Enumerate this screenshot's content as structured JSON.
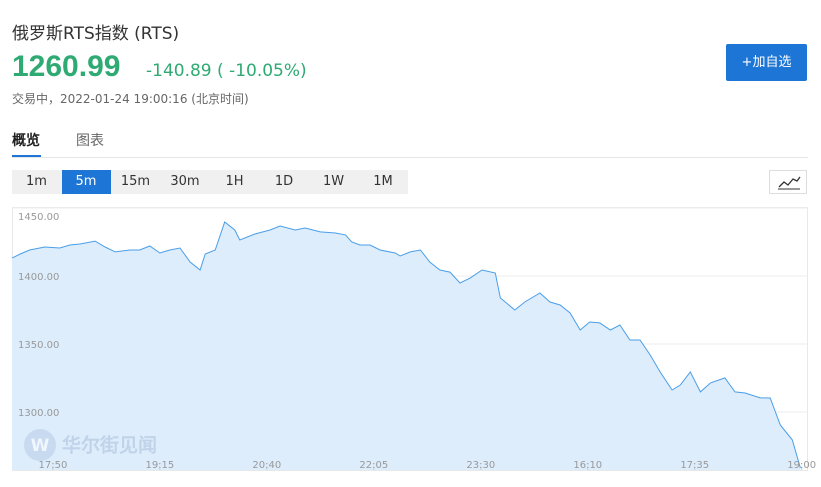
{
  "header": {
    "title": "俄罗斯RTS指数 (RTS)",
    "price": "1260.99",
    "change": "-140.89 ( -10.05%)",
    "status": "交易中，2022-01-24 19:00:16 (北京时间)",
    "add_button": "+加自选"
  },
  "tabs": [
    "概览",
    "图表"
  ],
  "intervals": [
    "1m",
    "5m",
    "15m",
    "30m",
    "1H",
    "1D",
    "1W",
    "1M"
  ],
  "active_interval": 1,
  "watermark": "华尔街见闻",
  "chart_data": {
    "type": "area",
    "color": "#4a9ee8",
    "fill": "#ddedfc",
    "grid": true,
    "xlim": [
      -6.5,
      120
    ],
    "ylim": [
      1257.4,
      1450
    ],
    "xticks": [
      {
        "value": 0,
        "label": "17:50"
      },
      {
        "value": 17,
        "label": "19:15"
      },
      {
        "value": 34,
        "label": "20:40"
      },
      {
        "value": 51,
        "label": "22:05"
      },
      {
        "value": 68,
        "label": "23:30"
      },
      {
        "value": 85,
        "label": "16:10"
      },
      {
        "value": 102,
        "label": "17:35"
      },
      {
        "value": 119,
        "label": "19:00"
      }
    ],
    "yticks": [
      {
        "value": 1450,
        "label": "1450.00"
      },
      {
        "value": 1400,
        "label": "1400.00"
      },
      {
        "value": 1350,
        "label": "1350.00"
      },
      {
        "value": 1300,
        "label": "1300.00"
      }
    ],
    "x": [
      -6.5,
      -5.2,
      -3.7,
      -1.3,
      1.1,
      2.7,
      4.3,
      6.7,
      8.3,
      9.9,
      12.2,
      13.8,
      15.4,
      17.0,
      18.6,
      20.2,
      21.8,
      23.4,
      24.2,
      25.8,
      27.3,
      28.9,
      29.7,
      32.1,
      34.5,
      36.1,
      38.5,
      40.1,
      42.5,
      44.9,
      46.5,
      47.5,
      48.8,
      50.4,
      52.0,
      54.4,
      55.2,
      56.8,
      58.4,
      59.9,
      61.5,
      63.1,
      64.7,
      66.3,
      68.2,
      70.3,
      71.1,
      73.4,
      75.0,
      77.4,
      79.0,
      80.6,
      82.2,
      83.8,
      85.3,
      86.9,
      88.6,
      90.1,
      91.7,
      93.3,
      94.9,
      96.5,
      98.4,
      99.7,
      101.3,
      102.9,
      104.5,
      106.8,
      108.4,
      110.0,
      112.4,
      114.0,
      115.6,
      117.5,
      118.8
    ],
    "values": [
      1413.2,
      1416.2,
      1419.1,
      1421.3,
      1420.6,
      1422.8,
      1423.5,
      1425.7,
      1421.3,
      1417.7,
      1419.1,
      1419.1,
      1422.1,
      1416.9,
      1419.1,
      1420.6,
      1410.3,
      1404.4,
      1416.2,
      1419.1,
      1439.7,
      1433.8,
      1426.5,
      1430.9,
      1433.8,
      1436.8,
      1433.8,
      1435.3,
      1432.4,
      1431.6,
      1430.2,
      1425.0,
      1422.8,
      1422.8,
      1419.1,
      1416.9,
      1414.7,
      1417.7,
      1419.1,
      1410.3,
      1404.4,
      1402.9,
      1394.9,
      1398.5,
      1404.4,
      1402.2,
      1383.9,
      1375.0,
      1380.9,
      1387.5,
      1380.9,
      1378.7,
      1372.8,
      1360.3,
      1366.2,
      1365.5,
      1360.3,
      1364.0,
      1353.0,
      1353.0,
      1342.0,
      1329.5,
      1316.2,
      1319.9,
      1329.5,
      1314.8,
      1321.4,
      1325.1,
      1314.8,
      1314.0,
      1310.4,
      1310.3,
      1290.5,
      1279.5,
      1258.9
    ]
  }
}
